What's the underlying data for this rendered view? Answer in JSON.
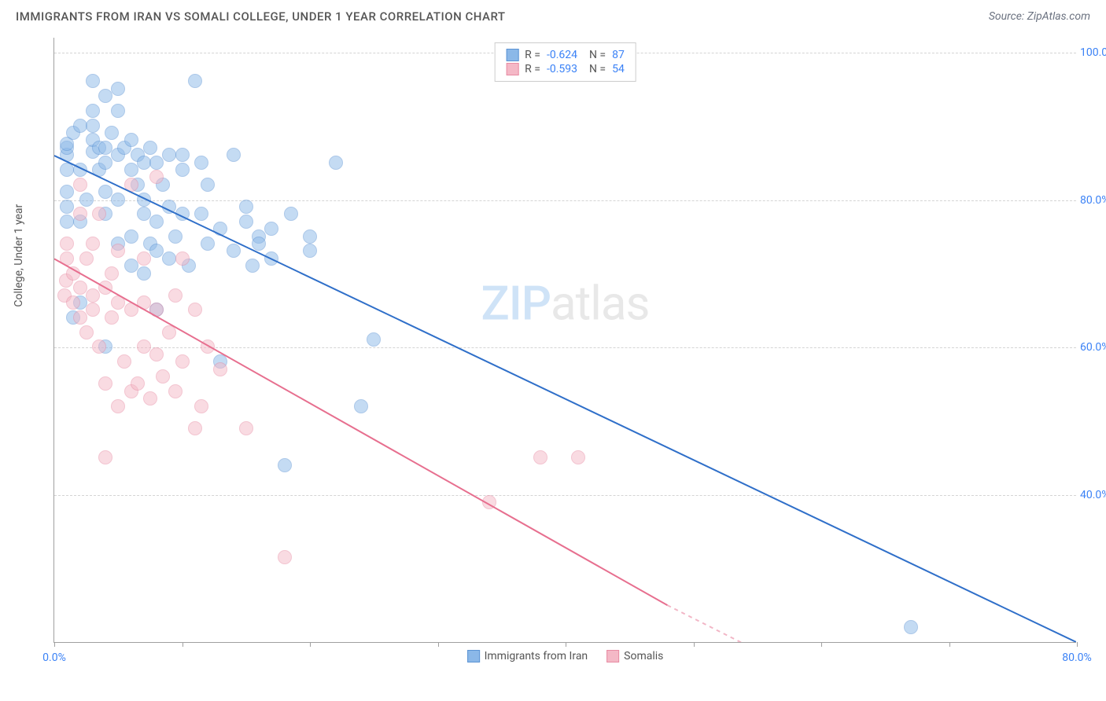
{
  "title": "IMMIGRANTS FROM IRAN VS SOMALI COLLEGE, UNDER 1 YEAR CORRELATION CHART",
  "source": "Source: ZipAtlas.com",
  "y_axis_label": "College, Under 1 year",
  "watermark_a": "ZIP",
  "watermark_b": "atlas",
  "chart": {
    "type": "scatter",
    "xlim": [
      0,
      80
    ],
    "ylim": [
      20,
      102
    ],
    "x_ticks": [
      0,
      10,
      20,
      30,
      40,
      50,
      60,
      70,
      80
    ],
    "x_tick_labels": {
      "0": "0.0%",
      "80": "80.0%"
    },
    "y_ticks": [
      40,
      60,
      80,
      100
    ],
    "y_tick_labels": {
      "40": "40.0%",
      "60": "60.0%",
      "80": "80.0%",
      "100": "100.0%"
    },
    "grid_color": "#d4d4d4",
    "axis_color": "#a0a0a0",
    "background_color": "#ffffff",
    "marker_radius": 9,
    "marker_opacity": 0.5,
    "series": [
      {
        "name": "Immigrants from Iran",
        "color": "#8bb8e8",
        "border": "#5b93d4",
        "line_color": "#2f6fc9",
        "R": "-0.624",
        "N": "87",
        "trend": {
          "x1": 0,
          "y1": 86,
          "x2": 80,
          "y2": 20
        },
        "points": [
          [
            1,
            77
          ],
          [
            1,
            79
          ],
          [
            1,
            81
          ],
          [
            1,
            84
          ],
          [
            1,
            86
          ],
          [
            1,
            87
          ],
          [
            1,
            87.5
          ],
          [
            1.5,
            64
          ],
          [
            1.5,
            89
          ],
          [
            2,
            77
          ],
          [
            2,
            84
          ],
          [
            2,
            66
          ],
          [
            2,
            90
          ],
          [
            2.5,
            80
          ],
          [
            3,
            86.5
          ],
          [
            3,
            88
          ],
          [
            3,
            90
          ],
          [
            3,
            92
          ],
          [
            3,
            96
          ],
          [
            3.5,
            84
          ],
          [
            3.5,
            87
          ],
          [
            4,
            60
          ],
          [
            4,
            78
          ],
          [
            4,
            81
          ],
          [
            4,
            85
          ],
          [
            4,
            87
          ],
          [
            4,
            94
          ],
          [
            4.5,
            89
          ],
          [
            5,
            86
          ],
          [
            5,
            80
          ],
          [
            5,
            74
          ],
          [
            5,
            92
          ],
          [
            5,
            95
          ],
          [
            5.5,
            87
          ],
          [
            6,
            75
          ],
          [
            6,
            84
          ],
          [
            6,
            71
          ],
          [
            6,
            88
          ],
          [
            6.5,
            82
          ],
          [
            6.5,
            86
          ],
          [
            7,
            70
          ],
          [
            7,
            80
          ],
          [
            7,
            85
          ],
          [
            7,
            78
          ],
          [
            7.5,
            74
          ],
          [
            7.5,
            87
          ],
          [
            8,
            65
          ],
          [
            8,
            73
          ],
          [
            8,
            85
          ],
          [
            8,
            77
          ],
          [
            8.5,
            82
          ],
          [
            9,
            86
          ],
          [
            9,
            79
          ],
          [
            9,
            72
          ],
          [
            9.5,
            75
          ],
          [
            10,
            84
          ],
          [
            10,
            86
          ],
          [
            10,
            78
          ],
          [
            10.5,
            71
          ],
          [
            11,
            96
          ],
          [
            11.5,
            85
          ],
          [
            11.5,
            78
          ],
          [
            12,
            74
          ],
          [
            12,
            82
          ],
          [
            13,
            76
          ],
          [
            13,
            58
          ],
          [
            14,
            73
          ],
          [
            14,
            86
          ],
          [
            15,
            77
          ],
          [
            15,
            79
          ],
          [
            15.5,
            71
          ],
          [
            16,
            75
          ],
          [
            16,
            74
          ],
          [
            17,
            76
          ],
          [
            17,
            72
          ],
          [
            18,
            44
          ],
          [
            18.5,
            78
          ],
          [
            20,
            75
          ],
          [
            20,
            73
          ],
          [
            22,
            85
          ],
          [
            24,
            52
          ],
          [
            25,
            61
          ],
          [
            67,
            22
          ]
        ]
      },
      {
        "name": "Somalis",
        "color": "#f4b8c6",
        "border": "#e88ba3",
        "line_color": "#e76f8f",
        "R": "-0.593",
        "N": "54",
        "trend": {
          "x1": 0,
          "y1": 72,
          "x2": 48,
          "y2": 25,
          "dash_to_x": 56,
          "dash_to_y": 18
        },
        "points": [
          [
            0.8,
            67
          ],
          [
            0.9,
            69
          ],
          [
            1,
            72
          ],
          [
            1,
            74
          ],
          [
            1.5,
            70
          ],
          [
            1.5,
            66
          ],
          [
            2,
            68
          ],
          [
            2,
            64
          ],
          [
            2,
            82
          ],
          [
            2,
            78
          ],
          [
            2.5,
            72
          ],
          [
            2.5,
            62
          ],
          [
            3,
            67
          ],
          [
            3,
            65
          ],
          [
            3,
            74
          ],
          [
            3.5,
            60
          ],
          [
            3.5,
            78
          ],
          [
            4,
            45
          ],
          [
            4,
            55
          ],
          [
            4,
            68
          ],
          [
            4.5,
            70
          ],
          [
            4.5,
            64
          ],
          [
            5,
            52
          ],
          [
            5,
            66
          ],
          [
            5,
            73
          ],
          [
            5.5,
            58
          ],
          [
            6,
            54
          ],
          [
            6,
            65
          ],
          [
            6,
            82
          ],
          [
            6.5,
            55
          ],
          [
            7,
            66
          ],
          [
            7,
            60
          ],
          [
            7,
            72
          ],
          [
            7.5,
            53
          ],
          [
            8,
            59
          ],
          [
            8,
            65
          ],
          [
            8,
            83
          ],
          [
            8.5,
            56
          ],
          [
            9,
            62
          ],
          [
            9.5,
            67
          ],
          [
            9.5,
            54
          ],
          [
            10,
            72
          ],
          [
            10,
            58
          ],
          [
            11,
            49
          ],
          [
            11,
            65
          ],
          [
            11.5,
            52
          ],
          [
            12,
            60
          ],
          [
            13,
            57
          ],
          [
            15,
            49
          ],
          [
            18,
            31.5
          ],
          [
            34,
            39
          ],
          [
            38,
            45
          ],
          [
            41,
            45
          ]
        ]
      }
    ]
  },
  "legend_bottom": [
    {
      "label": "Immigrants from Iran",
      "fill": "#8bb8e8",
      "border": "#5b93d4"
    },
    {
      "label": "Somalis",
      "fill": "#f4b8c6",
      "border": "#e88ba3"
    }
  ]
}
